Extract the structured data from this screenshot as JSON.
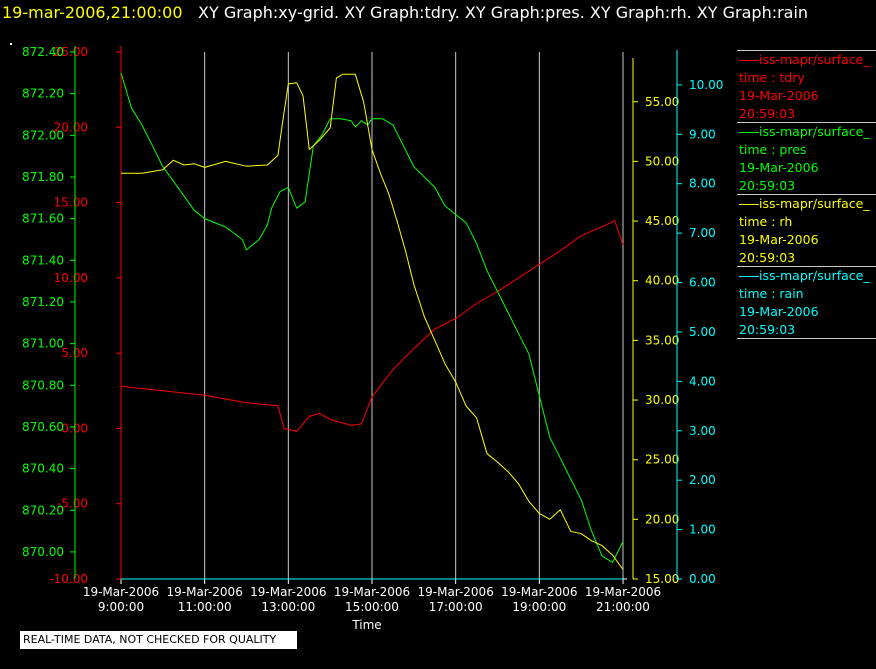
{
  "header": {
    "timestamp": "19-mar-2006,21:00:00",
    "graphs": "XY Graph:xy-grid.  XY Graph:tdry.  XY Graph:pres.  XY Graph:rh.  XY Graph:rain"
  },
  "quality_note": "REAL-TIME DATA, NOT CHECKED FOR QUALITY",
  "colors": {
    "tdry": "#ff0000",
    "pres": "#00ff00",
    "rh": "#ffff00",
    "rain": "#00ffff",
    "grid": "#c8c8c8",
    "background": "#000000"
  },
  "legend": [
    {
      "name": "iss-mapr/surface_",
      "field": "time : tdry",
      "date": "19-Mar-2006",
      "time": "20:59:03",
      "color": "#ff0000"
    },
    {
      "name": "iss-mapr/surface_",
      "field": "time : pres",
      "date": "19-Mar-2006",
      "time": "20:59:03",
      "color": "#00ff00"
    },
    {
      "name": "iss-mapr/surface_",
      "field": "time : rh",
      "date": "19-Mar-2006",
      "time": "20:59:03",
      "color": "#ffff00"
    },
    {
      "name": "iss-mapr/surface_",
      "field": "time : rain",
      "date": "19-Mar-2006",
      "time": "20:59:03",
      "color": "#00ffff"
    }
  ],
  "chart_data": {
    "type": "line",
    "xlabel": "Time",
    "x_ticks": [
      {
        "date": "19-Mar-2006",
        "time": "9:00:00"
      },
      {
        "date": "19-Mar-2006",
        "time": "11:00:00"
      },
      {
        "date": "19-Mar-2006",
        "time": "13:00:00"
      },
      {
        "date": "19-Mar-2006",
        "time": "15:00:00"
      },
      {
        "date": "19-Mar-2006",
        "time": "17:00:00"
      },
      {
        "date": "19-Mar-2006",
        "time": "19:00:00"
      },
      {
        "date": "19-Mar-2006",
        "time": "21:00:00"
      }
    ],
    "x_hours_range": [
      9,
      21
    ],
    "grid": "vertical",
    "axes": [
      {
        "id": "tdry",
        "side": "left",
        "color": "#ff0000",
        "ylim": [
          -10,
          25
        ],
        "ticks": [
          "-10.00",
          "-5.00",
          "0.00",
          "5.00",
          "10.00",
          "15.00",
          "20.00",
          "25.00"
        ]
      },
      {
        "id": "pres",
        "side": "left",
        "color": "#00ff00",
        "ylim": [
          869.87,
          872.4
        ],
        "ticks": [
          "870.00",
          "870.20",
          "870.40",
          "870.60",
          "870.80",
          "871.00",
          "871.20",
          "871.40",
          "871.60",
          "871.80",
          "872.00",
          "872.20",
          "872.40"
        ]
      },
      {
        "id": "rh",
        "side": "right",
        "color": "#ffff00",
        "ylim": [
          15,
          58.5
        ],
        "ticks": [
          "15.00",
          "20.00",
          "25.00",
          "30.00",
          "35.00",
          "40.00",
          "45.00",
          "50.00",
          "55.00"
        ]
      },
      {
        "id": "rain",
        "side": "right",
        "color": "#00ffff",
        "ylim": [
          0,
          10.2
        ],
        "ticks": [
          "0.00",
          "1.00",
          "2.00",
          "3.00",
          "4.00",
          "5.00",
          "6.00",
          "7.00",
          "8.00",
          "9.00",
          "10.00"
        ]
      }
    ],
    "series": [
      {
        "name": "tdry",
        "axis": "tdry",
        "color": "#ff0000",
        "x": [
          9.0,
          10.0,
          11.0,
          12.0,
          12.75,
          12.9,
          13.2,
          13.5,
          13.75,
          14.0,
          14.5,
          14.75,
          15.0,
          15.5,
          16.0,
          16.5,
          17.0,
          17.5,
          18.0,
          18.5,
          19.0,
          19.5,
          20.0,
          20.5,
          20.8,
          21.0
        ],
        "y": [
          2.8,
          2.5,
          2.2,
          1.7,
          1.5,
          0.0,
          -0.2,
          0.8,
          1.0,
          0.6,
          0.2,
          0.3,
          2.1,
          3.9,
          5.3,
          6.6,
          7.3,
          8.3,
          9.1,
          10.0,
          10.9,
          11.8,
          12.8,
          13.4,
          13.8,
          12.2
        ]
      },
      {
        "name": "pres",
        "axis": "pres",
        "color": "#00ff00",
        "x": [
          9.0,
          9.25,
          9.5,
          9.75,
          10.0,
          10.25,
          10.5,
          10.75,
          11.0,
          11.5,
          11.9,
          12.0,
          12.3,
          12.5,
          12.6,
          12.8,
          13.0,
          13.2,
          13.4,
          13.6,
          13.8,
          14.0,
          14.25,
          14.5,
          14.6,
          14.75,
          14.9,
          15.0,
          15.25,
          15.5,
          15.75,
          16.0,
          16.25,
          16.5,
          16.75,
          17.0,
          17.25,
          17.5,
          17.75,
          18.0,
          18.25,
          18.5,
          18.75,
          19.0,
          19.25,
          19.5,
          19.75,
          20.0,
          20.25,
          20.5,
          20.75,
          21.0
        ],
        "y": [
          872.3,
          872.13,
          872.05,
          871.95,
          871.85,
          871.78,
          871.71,
          871.64,
          871.6,
          871.56,
          871.5,
          871.45,
          871.5,
          871.57,
          871.65,
          871.73,
          871.75,
          871.65,
          871.68,
          871.95,
          872.0,
          872.08,
          872.08,
          872.07,
          872.04,
          872.07,
          872.05,
          872.08,
          872.08,
          872.05,
          871.95,
          871.85,
          871.8,
          871.75,
          871.66,
          871.62,
          871.58,
          871.48,
          871.35,
          871.25,
          871.15,
          871.05,
          870.95,
          870.75,
          870.55,
          870.45,
          870.35,
          870.25,
          870.1,
          869.98,
          869.95,
          870.05
        ]
      },
      {
        "name": "rh",
        "axis": "rh",
        "color": "#ffff00",
        "x": [
          9.0,
          9.5,
          10.0,
          10.25,
          10.5,
          10.75,
          11.0,
          11.5,
          12.0,
          12.5,
          12.75,
          12.85,
          13.0,
          13.2,
          13.35,
          13.5,
          13.75,
          14.0,
          14.15,
          14.3,
          14.6,
          14.8,
          15.0,
          15.2,
          15.4,
          15.6,
          15.8,
          16.0,
          16.25,
          16.5,
          16.75,
          17.0,
          17.25,
          17.5,
          17.75,
          18.0,
          18.25,
          18.5,
          18.75,
          19.0,
          19.25,
          19.5,
          19.75,
          20.0,
          20.25,
          20.5,
          20.75,
          21.0
        ],
        "y": [
          49.0,
          49.0,
          49.3,
          50.1,
          49.7,
          49.8,
          49.5,
          50.0,
          49.6,
          49.7,
          50.5,
          53.0,
          56.5,
          56.6,
          55.5,
          51.0,
          51.8,
          52.8,
          57.0,
          57.3,
          57.3,
          55.0,
          51.0,
          49.0,
          47.3,
          45.0,
          42.5,
          39.7,
          37.0,
          35.0,
          33.0,
          31.5,
          29.5,
          28.5,
          25.5,
          24.8,
          24.0,
          23.0,
          21.5,
          20.5,
          20.0,
          20.8,
          19.0,
          18.8,
          18.2,
          17.8,
          17.0,
          15.8
        ]
      },
      {
        "name": "rain",
        "axis": "rain",
        "color": "#00ffff",
        "x": [
          9.0,
          21.0
        ],
        "y": [
          0.0,
          0.0
        ]
      }
    ]
  }
}
